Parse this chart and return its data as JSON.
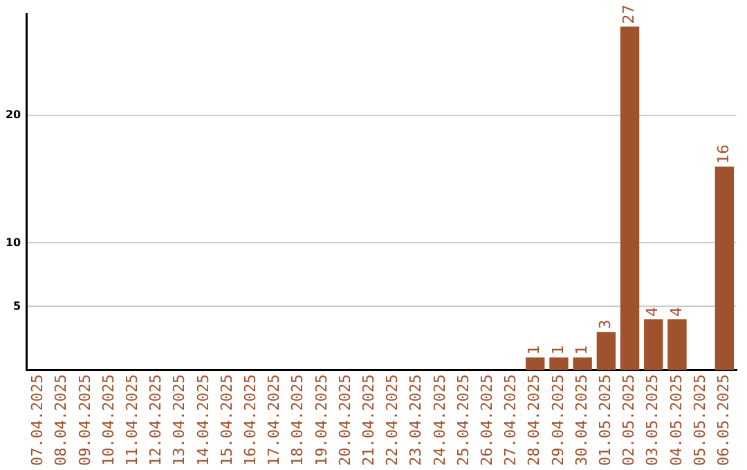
{
  "chart_data": {
    "type": "bar",
    "categories": [
      "07.04.2025",
      "08.04.2025",
      "09.04.2025",
      "10.04.2025",
      "11.04.2025",
      "12.04.2025",
      "13.04.2025",
      "14.04.2025",
      "15.04.2025",
      "16.04.2025",
      "17.04.2025",
      "18.04.2025",
      "19.04.2025",
      "20.04.2025",
      "21.04.2025",
      "22.04.2025",
      "23.04.2025",
      "24.04.2025",
      "25.04.2025",
      "26.04.2025",
      "27.04.2025",
      "28.04.2025",
      "29.04.2025",
      "30.04.2025",
      "01.05.2025",
      "02.05.2025",
      "03.05.2025",
      "04.05.2025",
      "05.05.2025",
      "06.05.2025"
    ],
    "values": [
      0,
      0,
      0,
      0,
      0,
      0,
      0,
      0,
      0,
      0,
      0,
      0,
      0,
      0,
      0,
      0,
      0,
      0,
      0,
      0,
      0,
      1,
      1,
      1,
      3,
      27,
      4,
      4,
      0,
      16
    ],
    "value_labels": [
      null,
      null,
      null,
      null,
      null,
      null,
      null,
      null,
      null,
      null,
      null,
      null,
      null,
      null,
      null,
      null,
      null,
      null,
      null,
      null,
      null,
      "1",
      "1",
      "1",
      "3",
      "27",
      "4",
      "4",
      null,
      "16"
    ],
    "color": "#a0522d",
    "ylim": [
      0,
      28
    ],
    "yticks": [
      5,
      10,
      20
    ],
    "grid": "y"
  }
}
